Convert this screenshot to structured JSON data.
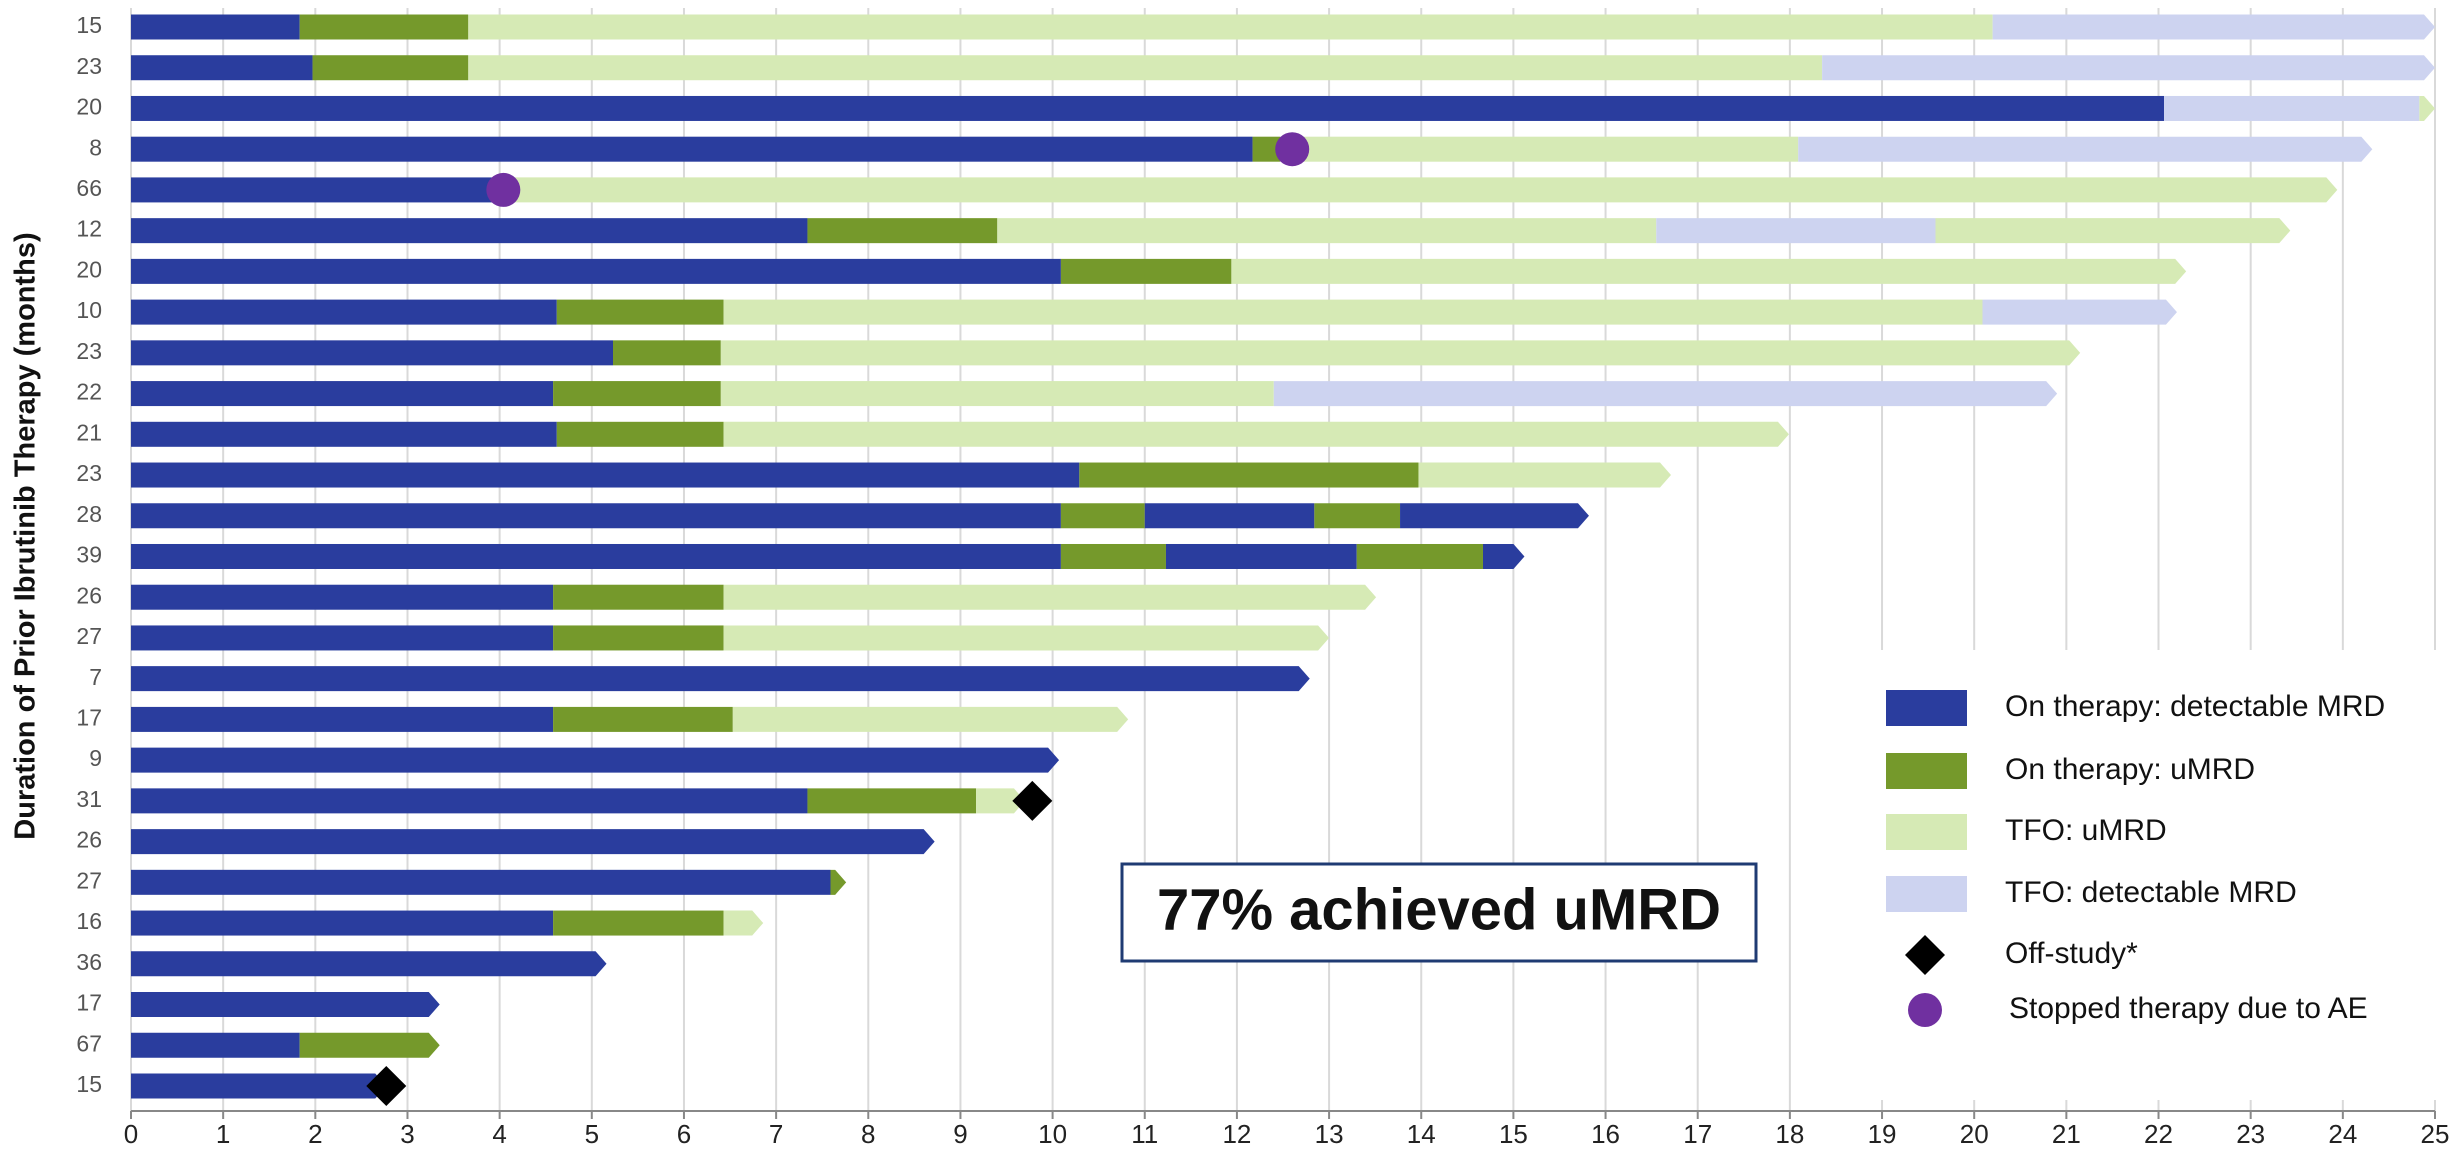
{
  "chart_data": {
    "type": "swimmer",
    "y_label": "Duration of Prior Ibrutinib Therapy (months)",
    "annotation": "77% achieved uMRD",
    "xlim": [
      0,
      25
    ],
    "xticks": [
      0,
      1,
      2,
      3,
      4,
      5,
      6,
      7,
      8,
      9,
      10,
      11,
      12,
      13,
      14,
      15,
      16,
      17,
      18,
      19,
      20,
      21,
      22,
      23,
      24,
      25
    ],
    "grid": true,
    "legend": "lower right",
    "series": [
      {
        "name": "On therapy: detectable MRD",
        "color": "#2a3d9e",
        "shape": "bar"
      },
      {
        "name": "On therapy: uMRD",
        "color": "#75992b",
        "shape": "bar"
      },
      {
        "name": "TFO: uMRD",
        "color": "#d6eab5",
        "shape": "bar"
      },
      {
        "name": "TFO: detectable MRD",
        "color": "#cdd3f0",
        "shape": "bar"
      },
      {
        "name": "Off-study*",
        "color": "#000000",
        "shape": "diamond"
      },
      {
        "name": "Stopped therapy due to AE",
        "color": "#7030a0",
        "shape": "circle"
      }
    ],
    "categories": [
      "15",
      "23",
      "20",
      "8",
      "66",
      "12",
      "20",
      "10",
      "23",
      "22",
      "21",
      "23",
      "28",
      "39",
      "26",
      "27",
      "7",
      "17",
      "9",
      "31",
      "26",
      "27",
      "16",
      "36",
      "17",
      "67",
      "15"
    ],
    "rows": [
      {
        "segments": [
          {
            "series": 0,
            "value": 1.83
          },
          {
            "series": 1,
            "value": 1.83
          },
          {
            "series": 2,
            "value": 16.54
          },
          {
            "series": 3,
            "value": 4.8
          }
        ]
      },
      {
        "segments": [
          {
            "series": 0,
            "value": 1.97
          },
          {
            "series": 1,
            "value": 1.69
          },
          {
            "series": 2,
            "value": 14.69
          },
          {
            "series": 3,
            "value": 6.65
          }
        ]
      },
      {
        "segments": [
          {
            "series": 0,
            "value": 22.06
          },
          {
            "series": 3,
            "value": 2.77
          },
          {
            "series": 2,
            "value": 0.17
          }
        ]
      },
      {
        "segments": [
          {
            "series": 0,
            "value": 12.17
          },
          {
            "series": 1,
            "value": 0.3
          },
          {
            "series": 2,
            "value": 5.62
          },
          {
            "series": 3,
            "value": 6.23
          }
        ],
        "marker": {
          "series": 5,
          "value": 12.6
        }
      },
      {
        "segments": [
          {
            "series": 0,
            "value": 4.02
          },
          {
            "series": 2,
            "value": 19.92
          }
        ],
        "marker": {
          "series": 5,
          "value": 4.04
        }
      },
      {
        "segments": [
          {
            "series": 0,
            "value": 7.34
          },
          {
            "series": 1,
            "value": 2.06
          },
          {
            "series": 2,
            "value": 7.15
          },
          {
            "series": 3,
            "value": 3.03
          },
          {
            "series": 2,
            "value": 3.85
          }
        ]
      },
      {
        "segments": [
          {
            "series": 0,
            "value": 10.09
          },
          {
            "series": 1,
            "value": 1.85
          },
          {
            "series": 2,
            "value": 10.36
          }
        ]
      },
      {
        "segments": [
          {
            "series": 0,
            "value": 4.62
          },
          {
            "series": 1,
            "value": 1.81
          },
          {
            "series": 2,
            "value": 13.66
          },
          {
            "series": 3,
            "value": 2.11
          }
        ]
      },
      {
        "segments": [
          {
            "series": 0,
            "value": 5.23
          },
          {
            "series": 1,
            "value": 1.17
          },
          {
            "series": 2,
            "value": 14.75
          }
        ]
      },
      {
        "segments": [
          {
            "series": 0,
            "value": 4.58
          },
          {
            "series": 1,
            "value": 1.82
          },
          {
            "series": 2,
            "value": 6.0
          },
          {
            "series": 3,
            "value": 8.5
          }
        ]
      },
      {
        "segments": [
          {
            "series": 0,
            "value": 4.62
          },
          {
            "series": 1,
            "value": 1.81
          },
          {
            "series": 2,
            "value": 11.56
          }
        ]
      },
      {
        "segments": [
          {
            "series": 0,
            "value": 10.29
          },
          {
            "series": 1,
            "value": 3.68
          },
          {
            "series": 2,
            "value": 2.74
          }
        ]
      },
      {
        "segments": [
          {
            "series": 0,
            "value": 10.09
          },
          {
            "series": 1,
            "value": 0.91
          },
          {
            "series": 0,
            "value": 1.84
          },
          {
            "series": 1,
            "value": 0.93
          },
          {
            "series": 0,
            "value": 2.05
          }
        ]
      },
      {
        "segments": [
          {
            "series": 0,
            "value": 10.09
          },
          {
            "series": 1,
            "value": 1.14
          },
          {
            "series": 0,
            "value": 2.07
          },
          {
            "series": 1,
            "value": 1.37
          },
          {
            "series": 0,
            "value": 0.45
          }
        ]
      },
      {
        "segments": [
          {
            "series": 0,
            "value": 4.58
          },
          {
            "series": 1,
            "value": 1.85
          },
          {
            "series": 2,
            "value": 7.08
          }
        ]
      },
      {
        "segments": [
          {
            "series": 0,
            "value": 4.58
          },
          {
            "series": 1,
            "value": 1.85
          },
          {
            "series": 2,
            "value": 6.57
          }
        ]
      },
      {
        "segments": [
          {
            "series": 0,
            "value": 12.79
          }
        ]
      },
      {
        "segments": [
          {
            "series": 0,
            "value": 4.58
          },
          {
            "series": 1,
            "value": 1.95
          },
          {
            "series": 2,
            "value": 4.29
          }
        ]
      },
      {
        "segments": [
          {
            "series": 0,
            "value": 10.07
          }
        ]
      },
      {
        "segments": [
          {
            "series": 0,
            "value": 7.34
          },
          {
            "series": 1,
            "value": 1.83
          },
          {
            "series": 2,
            "value": 0.53
          }
        ],
        "marker": {
          "series": 4,
          "value": 9.78
        }
      },
      {
        "segments": [
          {
            "series": 0,
            "value": 8.72
          }
        ]
      },
      {
        "segments": [
          {
            "series": 0,
            "value": 7.59
          },
          {
            "series": 1,
            "value": 0.17
          }
        ]
      },
      {
        "segments": [
          {
            "series": 0,
            "value": 4.58
          },
          {
            "series": 1,
            "value": 1.85
          },
          {
            "series": 2,
            "value": 0.43
          }
        ]
      },
      {
        "segments": [
          {
            "series": 0,
            "value": 5.16
          }
        ]
      },
      {
        "segments": [
          {
            "series": 0,
            "value": 3.35
          }
        ]
      },
      {
        "segments": [
          {
            "series": 0,
            "value": 1.83
          },
          {
            "series": 1,
            "value": 1.52
          }
        ]
      },
      {
        "segments": [
          {
            "series": 0,
            "value": 2.77
          }
        ],
        "marker": {
          "series": 4,
          "value": 2.77
        }
      }
    ]
  }
}
